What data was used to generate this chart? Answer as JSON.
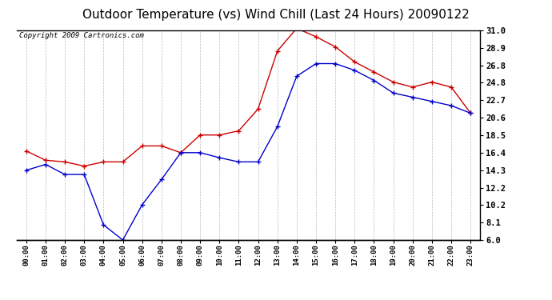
{
  "title": "Outdoor Temperature (vs) Wind Chill (Last 24 Hours) 20090122",
  "copyright": "Copyright 2009 Cartronics.com",
  "x_labels": [
    "00:00",
    "01:00",
    "02:00",
    "03:00",
    "04:00",
    "05:00",
    "06:00",
    "07:00",
    "08:00",
    "09:00",
    "10:00",
    "11:00",
    "12:00",
    "13:00",
    "14:00",
    "15:00",
    "16:00",
    "17:00",
    "18:00",
    "19:00",
    "20:00",
    "21:00",
    "22:00",
    "23:00"
  ],
  "temp_red": [
    16.6,
    15.5,
    15.3,
    14.8,
    15.3,
    15.3,
    17.2,
    17.2,
    16.4,
    18.5,
    18.5,
    19.0,
    21.6,
    28.5,
    31.2,
    30.2,
    29.0,
    27.2,
    26.0,
    24.8,
    24.2,
    24.8,
    24.2,
    21.1
  ],
  "wind_chill_blue": [
    14.3,
    15.0,
    13.8,
    13.8,
    7.8,
    6.0,
    10.2,
    13.2,
    16.4,
    16.4,
    15.8,
    15.3,
    15.3,
    19.5,
    25.5,
    27.0,
    27.0,
    26.2,
    25.0,
    23.5,
    23.0,
    22.5,
    22.0,
    21.1
  ],
  "y_ticks": [
    6.0,
    8.1,
    10.2,
    12.2,
    14.3,
    16.4,
    18.5,
    20.6,
    22.7,
    24.8,
    26.8,
    28.9,
    31.0
  ],
  "ymin": 6.0,
  "ymax": 31.0,
  "red_color": "#cc0000",
  "blue_color": "#0000cc",
  "bg_color": "#ffffff",
  "grid_color": "#bbbbbb",
  "title_fontsize": 11,
  "copyright_fontsize": 6.5
}
